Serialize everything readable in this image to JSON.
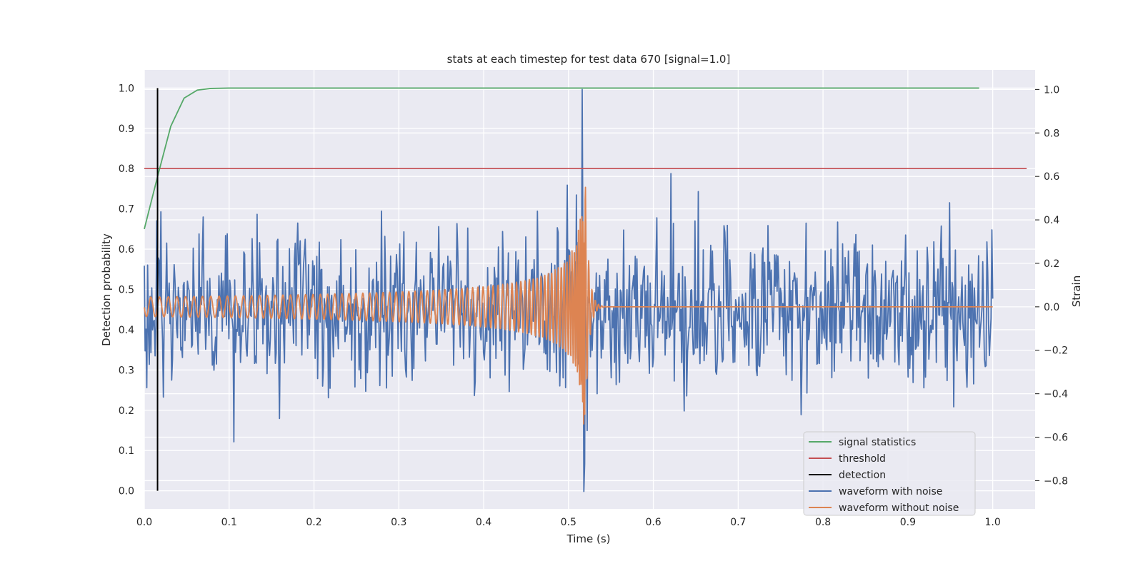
{
  "chart_data": {
    "type": "line",
    "title": "stats at each timestep for test data 670 [signal=1.0]",
    "xlabel": "Time (s)",
    "ylabel_left": "Detection probability",
    "ylabel_right": "Strain",
    "xlim": [
      0.0,
      1.05
    ],
    "ylim_left": [
      -0.045,
      1.045
    ],
    "ylim_right": [
      -0.93,
      1.09
    ],
    "x_ticks": [
      "0.0",
      "0.1",
      "0.2",
      "0.3",
      "0.4",
      "0.5",
      "0.6",
      "0.7",
      "0.8",
      "0.9",
      "1.0"
    ],
    "y_left_ticks": [
      "0.0",
      "0.1",
      "0.2",
      "0.3",
      "0.4",
      "0.5",
      "0.6",
      "0.7",
      "0.8",
      "0.9",
      "1.0"
    ],
    "y_right_ticks": [
      "−0.8",
      "−0.6",
      "−0.4",
      "−0.2",
      "0.0",
      "0.2",
      "0.4",
      "0.6",
      "0.8",
      "1.0"
    ],
    "grid": true,
    "legend_position": "lower-right",
    "colors": {
      "signal_statistics": "#55a868",
      "threshold": "#c44e52",
      "detection": "#000000",
      "waveform_with_noise": "#4c72b0",
      "waveform_without_noise": "#dd8452",
      "plot_background": "#eaeaf2",
      "grid": "#ffffff"
    },
    "series": [
      {
        "name": "signal statistics",
        "axis": "left",
        "x": [
          0.0,
          0.0156,
          0.0312,
          0.0469,
          0.0625,
          0.0781,
          0.1,
          0.2,
          0.3,
          0.4,
          0.5,
          0.6,
          0.7,
          0.8,
          0.9,
          0.984
        ],
        "y": [
          0.65,
          0.78,
          0.905,
          0.975,
          0.995,
          0.999,
          1.0,
          1.0,
          1.0,
          1.0,
          1.0,
          1.0,
          1.0,
          1.0,
          1.0,
          1.0
        ]
      },
      {
        "name": "threshold",
        "axis": "left",
        "x": [
          0.0,
          1.04
        ],
        "y": [
          0.8,
          0.8
        ]
      },
      {
        "name": "detection",
        "axis": "left",
        "x": [
          0.0156,
          0.0156
        ],
        "y": [
          0.0,
          1.0
        ]
      },
      {
        "name": "waveform with noise",
        "axis": "right",
        "x_range": [
          0.0,
          1.0
        ],
        "n_points": 1024,
        "noise_std": 0.17,
        "peak": {
          "x": 0.516,
          "y": 1.0
        },
        "trough": {
          "x": 0.518,
          "y": -0.85
        }
      },
      {
        "name": "waveform without noise",
        "axis": "right",
        "x_range": [
          0.0,
          1.0
        ],
        "merger_x": 0.52,
        "peak_amplitude": 0.55,
        "early_amplitude": 0.045,
        "post_merger": 0.0
      }
    ]
  }
}
